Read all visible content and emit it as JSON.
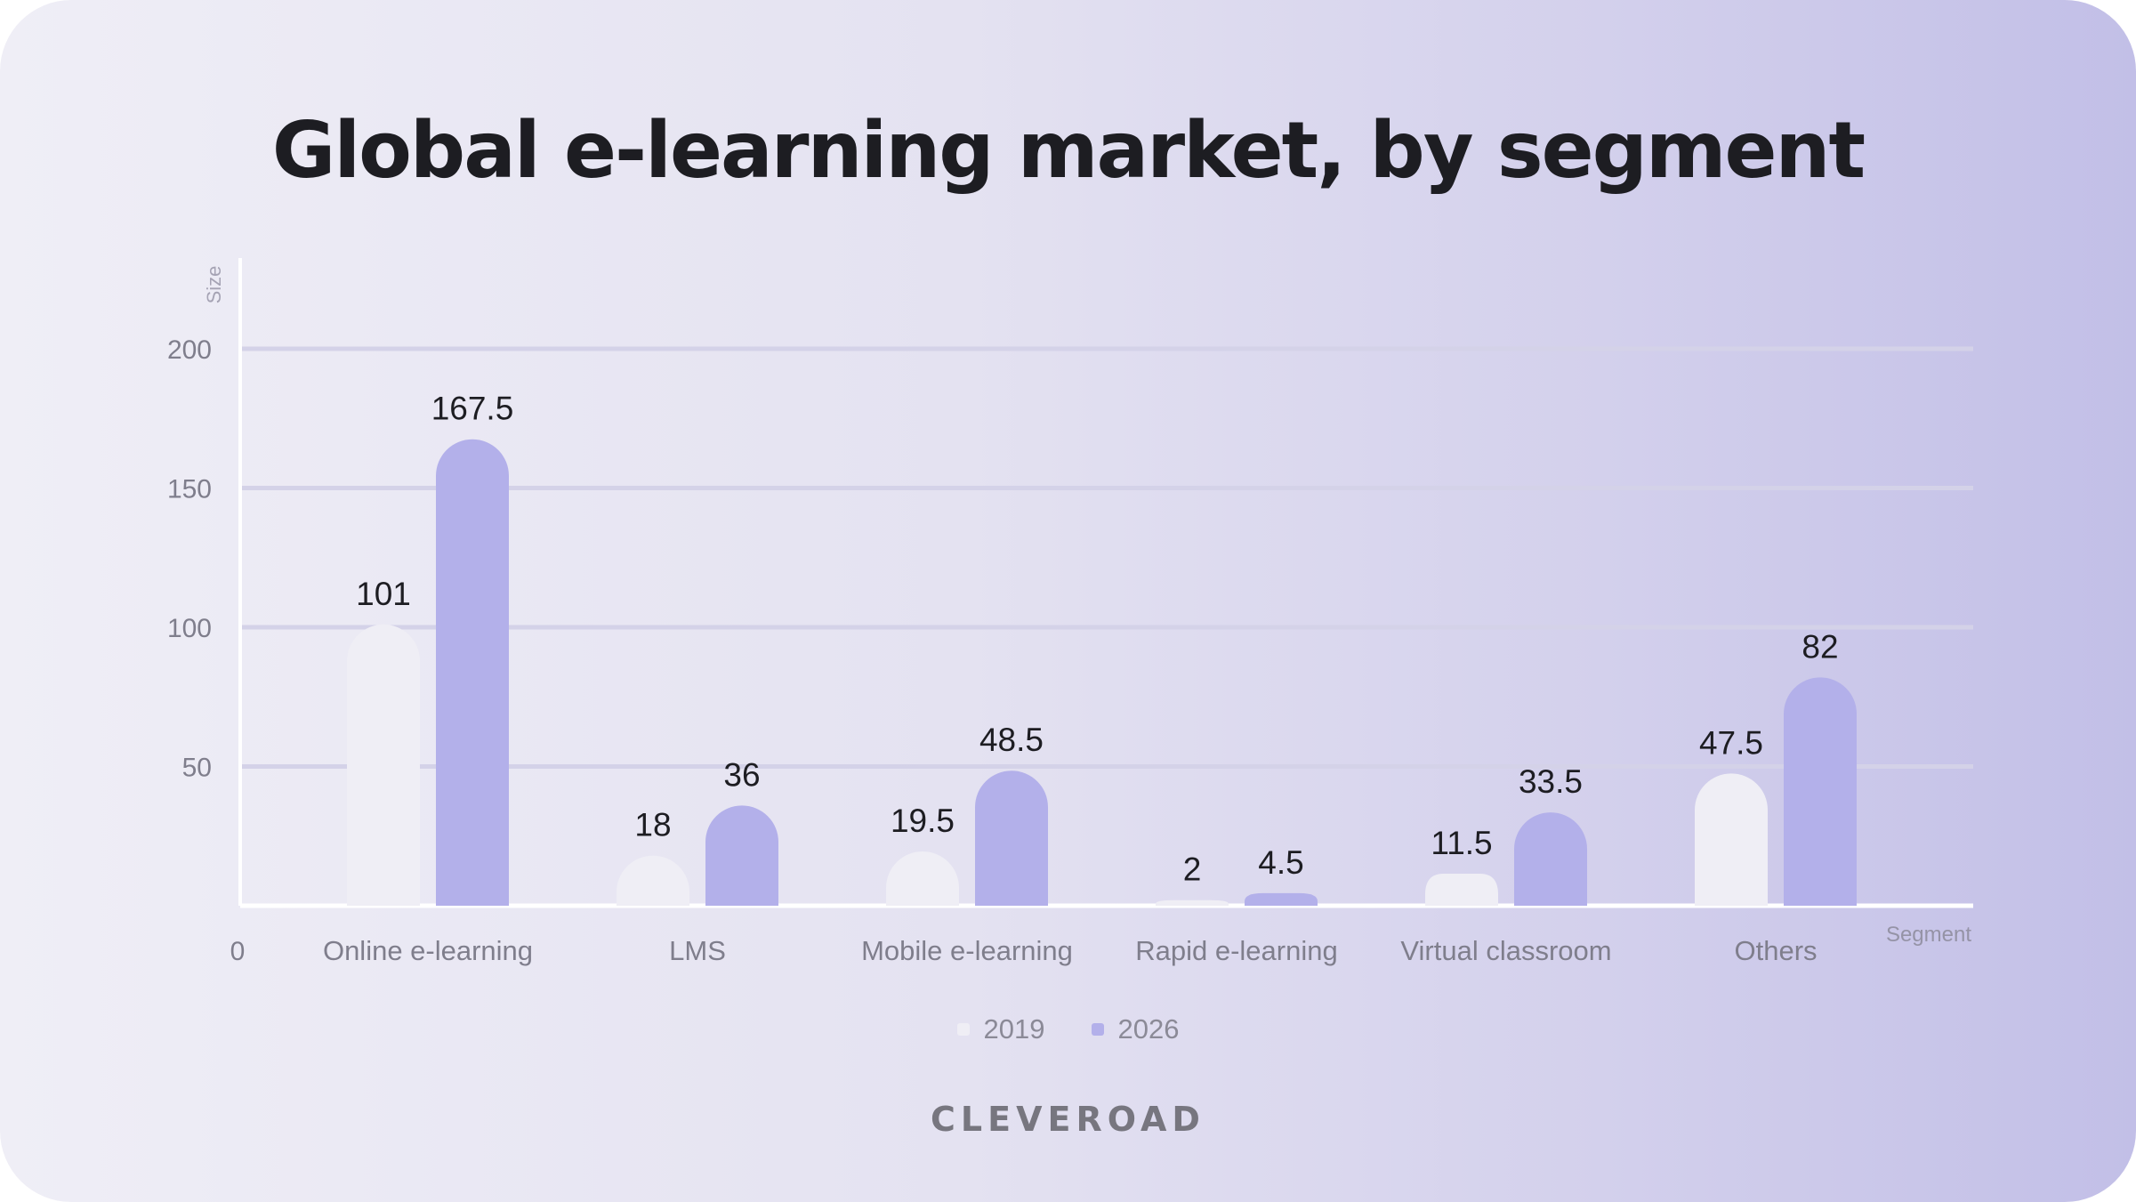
{
  "chart_data": {
    "type": "bar",
    "title": "Global e-learning market, by segment",
    "ylabel": "Size",
    "xlabel": "Segment",
    "ylim": [
      0,
      200
    ],
    "yticks": [
      0,
      50,
      100,
      150,
      200
    ],
    "grid": true,
    "legend_position": "bottom-center",
    "categories": [
      "Online e-learning",
      "LMS",
      "Mobile e-learning",
      "Rapid e-learning",
      "Virtual classroom",
      "Others"
    ],
    "series": [
      {
        "name": "2019",
        "color": "#efeef5",
        "values": [
          101,
          18,
          19.5,
          2,
          11.5,
          47.5
        ],
        "labels": [
          "101",
          "18",
          "19.5",
          "2",
          "11.5",
          "47.5"
        ]
      },
      {
        "name": "2026",
        "color": "#b3b0ea",
        "values": [
          167.5,
          36,
          48.5,
          4.5,
          33.5,
          82
        ],
        "labels": [
          "167.5",
          "36",
          "48.5",
          "4.5",
          "33.5",
          "82"
        ]
      }
    ]
  },
  "brand": {
    "name": "CLEVEROAD"
  },
  "colors": {
    "axis": "#ffffff",
    "grid": "#d4d2e8",
    "tick_text": "#7f7e8c",
    "value_text": "#1d1d22"
  }
}
